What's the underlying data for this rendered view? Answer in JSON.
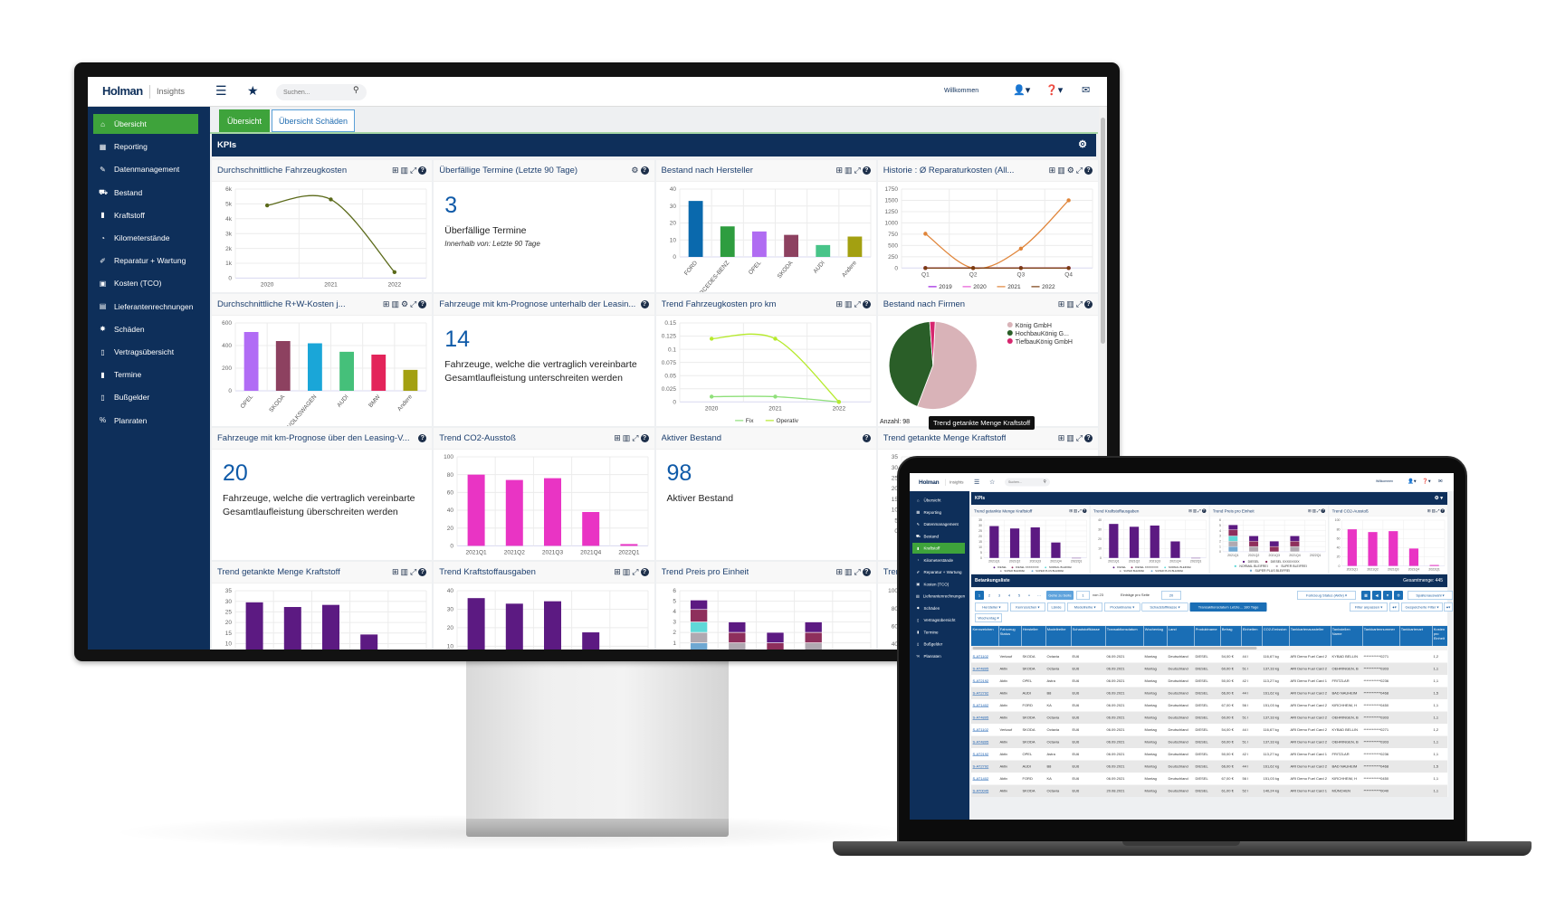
{
  "colors": {
    "navy": "#0e2f5a",
    "green": "#3ea33b",
    "accent_blue": "#0f5aa8",
    "table_header": "#1a6eb5"
  },
  "app": {
    "logo": "Holman",
    "product": "Insights",
    "search_placeholder": "Suchen...",
    "welcome": "Willkommen",
    "header_icons": [
      "menu-icon",
      "star-icon",
      "search-icon",
      "user-icon",
      "help-icon",
      "mail-icon"
    ]
  },
  "sidebar": {
    "items": [
      {
        "label": "Übersicht",
        "icon": "home-icon"
      },
      {
        "label": "Reporting",
        "icon": "table-icon"
      },
      {
        "label": "Datenmanagement",
        "icon": "edit-icon"
      },
      {
        "label": "Bestand",
        "icon": "car-icon"
      },
      {
        "label": "Kraftstoff",
        "icon": "bar-chart-icon"
      },
      {
        "label": "Kilometerstände",
        "icon": "gauge-icon"
      },
      {
        "label": "Reparatur + Wartung",
        "icon": "wrench-icon"
      },
      {
        "label": "Kosten (TCO)",
        "icon": "money-icon"
      },
      {
        "label": "Lieferantenrechnungen",
        "icon": "invoice-icon"
      },
      {
        "label": "Schäden",
        "icon": "damage-icon"
      },
      {
        "label": "Vertragsübersicht",
        "icon": "contract-icon"
      },
      {
        "label": "Termine",
        "icon": "calendar-icon"
      },
      {
        "label": "Bußgelder",
        "icon": "fine-icon"
      },
      {
        "label": "Planraten",
        "icon": "percent-icon"
      }
    ]
  },
  "charts": {
    "fahrzeugkosten": {
      "type": "line",
      "categories": [
        "2020",
        "2021",
        "2022"
      ],
      "ylim": [
        0,
        6000
      ],
      "ystep": 1000,
      "ytick_labels": [
        "0",
        "1k",
        "2k",
        "3k",
        "4k",
        "5k",
        "6k"
      ],
      "series": [
        {
          "values": [
            4900,
            5300,
            400
          ],
          "color": "#5b6a1a"
        }
      ]
    },
    "hersteller": {
      "type": "bar",
      "categories": [
        "FORD",
        "MERCEDES-BENZ",
        "OPEL",
        "SKODA",
        "AUDI",
        "Andere"
      ],
      "values": [
        33,
        18,
        15,
        13,
        7,
        12
      ],
      "colors": [
        "#0a69ad",
        "#2e9d3f",
        "#b06cf2",
        "#8d4160",
        "#48c489",
        "#a3a011"
      ],
      "ylim": [
        0,
        40
      ],
      "ystep": 10,
      "rotate_labels": true
    },
    "reparatur_historie": {
      "type": "line",
      "categories": [
        "Q1",
        "Q2",
        "Q3",
        "Q4"
      ],
      "ylim": [
        0,
        1750
      ],
      "ystep": 250,
      "series": [
        {
          "name": "2019",
          "values": [
            0,
            0,
            0,
            0
          ],
          "color": "#9b1fe0"
        },
        {
          "name": "2020",
          "values": [
            0,
            0,
            0,
            0
          ],
          "color": "#e85ad6"
        },
        {
          "name": "2021",
          "values": [
            760,
            0,
            430,
            1500
          ],
          "color": "#e0853a"
        },
        {
          "name": "2022",
          "values": [
            0,
            0,
            0,
            0
          ],
          "color": "#7a3d10"
        }
      ],
      "legend": true
    },
    "rw_kosten": {
      "type": "bar",
      "categories": [
        "OPEL",
        "SKODA",
        "VOLKSWAGEN",
        "AUDI",
        "BMW",
        "Andere"
      ],
      "values": [
        520,
        440,
        420,
        345,
        320,
        185
      ],
      "colors": [
        "#b16cf5",
        "#8d4160",
        "#1aa6d8",
        "#45c07a",
        "#e3245a",
        "#a3a011"
      ],
      "ylim": [
        0,
        600
      ],
      "ystep": 200,
      "rotate_labels": true
    },
    "kosten_pro_km": {
      "type": "line",
      "categories": [
        "2020",
        "2021",
        "2022"
      ],
      "ylim": [
        0,
        0.15
      ],
      "ystep": 0.025,
      "ytick_labels": [
        "0",
        "0.025",
        "0.05",
        "0.075",
        "0.1",
        "0.125",
        "0.15"
      ],
      "series": [
        {
          "name": "Fix",
          "values": [
            0.01,
            0.01,
            0
          ],
          "color": "#8fe07a"
        },
        {
          "name": "Operativ",
          "values": [
            0.12,
            0.12,
            0
          ],
          "color": "#b6ea2c"
        }
      ],
      "legend": true
    },
    "firmen": {
      "type": "pie",
      "slices": [
        {
          "name": "König GmbH",
          "value": 55,
          "color": "#d9b3b8"
        },
        {
          "name": "HochbauKönig G...",
          "value": 43,
          "color": "#2a5e28"
        },
        {
          "name": "TiefbauKönig GmbH",
          "value": 2,
          "color": "#d6266e"
        }
      ],
      "footer": "Anzahl: 98"
    },
    "co2": {
      "type": "bar",
      "categories": [
        "2021Q1",
        "2021Q2",
        "2021Q3",
        "2021Q4",
        "2022Q1"
      ],
      "values": [
        80,
        74,
        76,
        38,
        2
      ],
      "colors": [
        "#e934c4"
      ],
      "ylim": [
        0,
        100
      ],
      "ystep": 20
    },
    "menge": {
      "type": "bar",
      "categories": [
        "2021Q1",
        "2021Q2",
        "2021Q3",
        "2021Q4",
        "2022Q1"
      ],
      "values": [
        29.5,
        27.3,
        28.3,
        14.3,
        0
      ],
      "colors": [
        "#5c1a82"
      ],
      "ylim": [
        0,
        35
      ],
      "ystep": 5,
      "legend_items": [
        {
          "name": "DIESEL",
          "color": "#5c1a82"
        },
        {
          "name": "DIESEL XXXXXXXX",
          "color": "#8e2f5c"
        },
        {
          "name": "NORMAL BLEIFREI",
          "color": "#5fd8d8"
        },
        {
          "name": "SUPER BLEIFREI",
          "color": "#b0a9b1"
        },
        {
          "name": "SUPER PLUS BLEIFREI",
          "color": "#6fa8d2"
        }
      ]
    },
    "ausgaben": {
      "type": "bar",
      "categories": [
        "2021Q1",
        "2021Q2",
        "2021Q3",
        "2021Q4",
        "2022Q1"
      ],
      "values": [
        36,
        33,
        34.3,
        17.5,
        0
      ],
      "colors": [
        "#5c1a82"
      ],
      "ylim": [
        0,
        40
      ],
      "ystep": 10,
      "legend_items": [
        {
          "name": "DIESEL",
          "color": "#5c1a82"
        },
        {
          "name": "DIESEL XXXXXXXX",
          "color": "#8e2f5c"
        },
        {
          "name": "NORMAL BLEIFREI",
          "color": "#5fd8d8"
        },
        {
          "name": "SUPER BLEIFREI",
          "color": "#b0a9b1"
        },
        {
          "name": "SUPER PLUS BLEIFREI",
          "color": "#6fa8d2"
        }
      ]
    },
    "preis": {
      "type": "stacked",
      "categories": [
        "2021Q1",
        "2021Q2",
        "2021Q3",
        "2021Q4",
        "2022Q1"
      ],
      "ylim": [
        0,
        6
      ],
      "ystep": 1,
      "series": [
        {
          "name": "SUPER PLUS BLEIFREI",
          "values": [
            1,
            0,
            0,
            0,
            0
          ],
          "color": "#6fa8d2"
        },
        {
          "name": "SUPER BLEIFREI",
          "values": [
            1,
            1,
            0,
            1,
            0
          ],
          "color": "#b0a9b1"
        },
        {
          "name": "NORMAL BLEIFREI",
          "values": [
            1,
            0,
            0,
            0,
            0
          ],
          "color": "#5fd8d8"
        },
        {
          "name": "DIESEL XXXXXXXX",
          "values": [
            1.2,
            1,
            1,
            1,
            0
          ],
          "color": "#8e2f5c"
        },
        {
          "name": "DIESEL",
          "values": [
            0.9,
            1,
            1,
            1,
            0
          ],
          "color": "#5c1a82"
        }
      ],
      "legend": true
    }
  },
  "monitor": {
    "tabs": [
      "Übersicht",
      "Übersicht Schäden"
    ],
    "section_title": "KPIs",
    "tooltip": "Trend getankte Menge Kraftstoff",
    "widgets": [
      {
        "title": "Durchschnittliche Fahrzeugkosten",
        "icons": [
          "table",
          "columns",
          "expand",
          "help"
        ],
        "chart": "fahrzeugkosten"
      },
      {
        "title": "Überfällige Termine (Letzte 90 Tage)",
        "icons": [
          "gear",
          "help"
        ],
        "kpi": {
          "value": "3",
          "label": "Überfällige Termine",
          "sub": "Innerhalb von: Letzte 90 Tage"
        }
      },
      {
        "title": "Bestand nach Hersteller",
        "icons": [
          "table",
          "columns",
          "expand",
          "help"
        ],
        "chart": "hersteller"
      },
      {
        "title": "Historie : Ø Reparaturkosten (All...",
        "icons": [
          "table",
          "columns",
          "gear",
          "expand",
          "help"
        ],
        "chart": "reparatur_historie"
      },
      {
        "title": "Durchschnittliche R+W-Kosten j...",
        "icons": [
          "table",
          "columns",
          "gear",
          "expand",
          "help"
        ],
        "chart": "rw_kosten"
      },
      {
        "title": "Fahrzeuge mit km-Prognose unterhalb der Leasin...",
        "icons": [
          "help"
        ],
        "kpi": {
          "value": "14",
          "label": "Fahrzeuge, welche die vertraglich vereinbarte Gesamtlaufleistung unterschreiten werden"
        }
      },
      {
        "title": "Trend Fahrzeugkosten pro km",
        "icons": [
          "table",
          "columns",
          "expand",
          "help"
        ],
        "chart": "kosten_pro_km"
      },
      {
        "title": "Bestand nach Firmen",
        "icons": [
          "table",
          "columns",
          "expand",
          "help"
        ],
        "chart": "firmen"
      },
      {
        "title": "Fahrzeuge mit km-Prognose über den Leasing-V...",
        "icons": [
          "help"
        ],
        "kpi": {
          "value": "20",
          "label": "Fahrzeuge, welche die vertraglich vereinbarte Gesamtlaufleistung überschreiten werden"
        }
      },
      {
        "title": "Trend CO2-Ausstoß",
        "icons": [
          "table",
          "columns",
          "expand",
          "help"
        ],
        "chart": "co2"
      },
      {
        "title": "Aktiver Bestand",
        "icons": [
          "help"
        ],
        "kpi": {
          "value": "98",
          "label": "Aktiver Bestand"
        }
      },
      {
        "title": "Trend getankte Menge Kraftstoff",
        "icons": [
          "table",
          "columns",
          "expand",
          "help"
        ],
        "chart": "menge"
      },
      {
        "title": "Trend getankte Menge Kraftstoff",
        "icons": [
          "table",
          "columns",
          "expand",
          "help"
        ],
        "chart": "menge"
      },
      {
        "title": "Trend Kraftstoffausgaben",
        "icons": [
          "table",
          "columns",
          "expand",
          "help"
        ],
        "chart": "ausgaben"
      },
      {
        "title": "Trend Preis pro Einheit",
        "icons": [
          "table",
          "columns",
          "expand",
          "help"
        ],
        "chart": "preis"
      },
      {
        "title": "Trend CO2-Ausstoß",
        "icons": [
          "table",
          "columns",
          "expand",
          "help"
        ],
        "chart": "co2"
      }
    ]
  },
  "laptop": {
    "active_item": "Kraftstoff",
    "section_title": "KPIs",
    "widgets": [
      {
        "title": "Trend getankte Menge Kraftstoff",
        "icons": [
          "table",
          "columns",
          "expand",
          "help"
        ],
        "chart": "menge"
      },
      {
        "title": "Trend Kraftstoffausgaben",
        "icons": [
          "table",
          "columns",
          "expand",
          "help"
        ],
        "chart": "ausgaben"
      },
      {
        "title": "Trend Preis pro Einheit",
        "icons": [
          "table",
          "columns",
          "expand",
          "help"
        ],
        "chart": "preis"
      },
      {
        "title": "Trend CO2-Ausstoß",
        "icons": [
          "table",
          "columns",
          "expand",
          "help"
        ],
        "chart": "co2"
      }
    ],
    "list_title": "Betankungsliste",
    "total": "Gesamtmenge: 445",
    "pagination": {
      "pages": [
        "1",
        "2",
        "3",
        "4",
        "5",
        "»",
        "⋯"
      ],
      "goto_label": "Gehe zu Seite",
      "page_input": "1",
      "of_pages": "von 23",
      "per_page_label": "Einträge pro Seite",
      "per_page": "20"
    },
    "status_filter": "Fahrzeug Status (Aktiv) ▾",
    "column_select": "Spaltenauswahl ▾",
    "filters": [
      "Hersteller ▾",
      "Kennzeichen ▾",
      "Lände",
      "Modellreihe ▾",
      "Produktname ▾",
      "Schadstoffklasse ▾",
      "Transaktionsdatum Letzte... 180 Tage",
      "Wochentag ▾"
    ],
    "filter_adjust": "Filter anpassen ▾",
    "saved_filters": "Gespeicherte Filter ▾",
    "columns": [
      "Kennzeichen",
      "Fahrzeug Status",
      "Hersteller",
      "Modellreihe",
      "Schadstoffklasse",
      "Transaktionsdatum",
      "Wochentag",
      "Land",
      "Produktname",
      "Betrag",
      "Einheiten",
      "CO2-Emission",
      "Tankkartenaussteller",
      "Tankstellen Name",
      "Tankkartennummer",
      "Tankkartenart",
      "Kosten pro Einheit"
    ],
    "rows": [
      [
        "S-AT1102",
        "Verkauf",
        "SKODA",
        "Octavia",
        "EU6",
        "06.09.2021",
        "Montag",
        "Deutschland",
        "DIESEL",
        "54,00 €",
        "44 l",
        "116,67 kg",
        "ARI Demo Fuel Card 2",
        "KYBAD BELLIN",
        "************0271",
        "",
        "1,2"
      ],
      [
        "S-AT4895",
        "Aktiv",
        "SKODA",
        "Octavia",
        "EU6",
        "06.09.2021",
        "Montag",
        "Deutschland",
        "DIESEL",
        "60,00 €",
        "51 l",
        "137,33 kg",
        "ARI Demo Fuel Card 2",
        "OEHRINGEN, B",
        "************0303",
        "",
        "1,1"
      ],
      [
        "S-AT2192",
        "Aktiv",
        "OPEL",
        "Astra",
        "EU6",
        "06.09.2021",
        "Montag",
        "Deutschland",
        "DIESEL",
        "50,00 €",
        "42 l",
        "113,27 kg",
        "ARI Demo Fuel Card 1",
        "FRITZLAR",
        "************0236",
        "",
        "1,1"
      ],
      [
        "S-AT2792",
        "Aktiv",
        "AUDI",
        "B8",
        "EU6",
        "06.09.2021",
        "Montag",
        "Deutschland",
        "DIESEL",
        "66,00 €",
        "44 l",
        "161,62 kg",
        "ARI Demo Fuel Card 2",
        "BAD NAUHEIM",
        "************0468",
        "",
        "1,5"
      ],
      [
        "S-AT1402",
        "Aktiv",
        "FORD",
        "KA",
        "EU6",
        "06.09.2021",
        "Montag",
        "Deutschland",
        "DIESEL",
        "67,00 €",
        "56 l",
        "151,03 kg",
        "ARI Demo Fuel Card 2",
        "KIRCHHEIM, H",
        "************0450",
        "",
        "1,1"
      ],
      [
        "S-AT4895",
        "Aktiv",
        "SKODA",
        "Octavia",
        "EU6",
        "06.09.2021",
        "Montag",
        "Deutschland",
        "DIESEL",
        "60,00 €",
        "51 l",
        "137,33 kg",
        "ARI Demo Fuel Card 2",
        "OEHRINGEN, B",
        "************0303",
        "",
        "1,1"
      ],
      [
        "S-AT1102",
        "Verkauf",
        "SKODA",
        "Octavia",
        "EU6",
        "06.09.2021",
        "Montag",
        "Deutschland",
        "DIESEL",
        "54,00 €",
        "44 l",
        "116,67 kg",
        "ARI Demo Fuel Card 2",
        "KYBAD BELLIN",
        "************0271",
        "",
        "1,2"
      ],
      [
        "S-AT4895",
        "Aktiv",
        "SKODA",
        "Octavia",
        "EU6",
        "06.09.2021",
        "Montag",
        "Deutschland",
        "DIESEL",
        "60,00 €",
        "51 l",
        "137,33 kg",
        "ARI Demo Fuel Card 2",
        "OEHRINGEN, B",
        "************0303",
        "",
        "1,1"
      ],
      [
        "S-AT2192",
        "Aktiv",
        "OPEL",
        "Astra",
        "EU6",
        "06.09.2021",
        "Montag",
        "Deutschland",
        "DIESEL",
        "50,00 €",
        "42 l",
        "113,27 kg",
        "ARI Demo Fuel Card 1",
        "FRITZLAR",
        "************0236",
        "",
        "1,1"
      ],
      [
        "S-AT2792",
        "Aktiv",
        "AUDI",
        "B8",
        "EU6",
        "06.09.2021",
        "Montag",
        "Deutschland",
        "DIESEL",
        "66,00 €",
        "44 l",
        "161,62 kg",
        "ARI Demo Fuel Card 2",
        "BAD NAUHEIM",
        "************0468",
        "",
        "1,5"
      ],
      [
        "S-AT1402",
        "Aktiv",
        "FORD",
        "KA",
        "EU6",
        "06.09.2021",
        "Montag",
        "Deutschland",
        "DIESEL",
        "67,00 €",
        "56 l",
        "151,03 kg",
        "ARI Demo Fuel Card 2",
        "KIRCHHEIM, H",
        "************0450",
        "",
        "1,1"
      ],
      [
        "S-AT0045",
        "Aktiv",
        "SKODA",
        "Octavia",
        "EU6",
        "20.08.2021",
        "Montag",
        "Deutschland",
        "DIESEL",
        "61,00 €",
        "52 l",
        "140,24 kg",
        "ARI Demo Fuel Card 1",
        "MÜNCHEN",
        "************0040",
        "",
        "1,1"
      ]
    ]
  }
}
